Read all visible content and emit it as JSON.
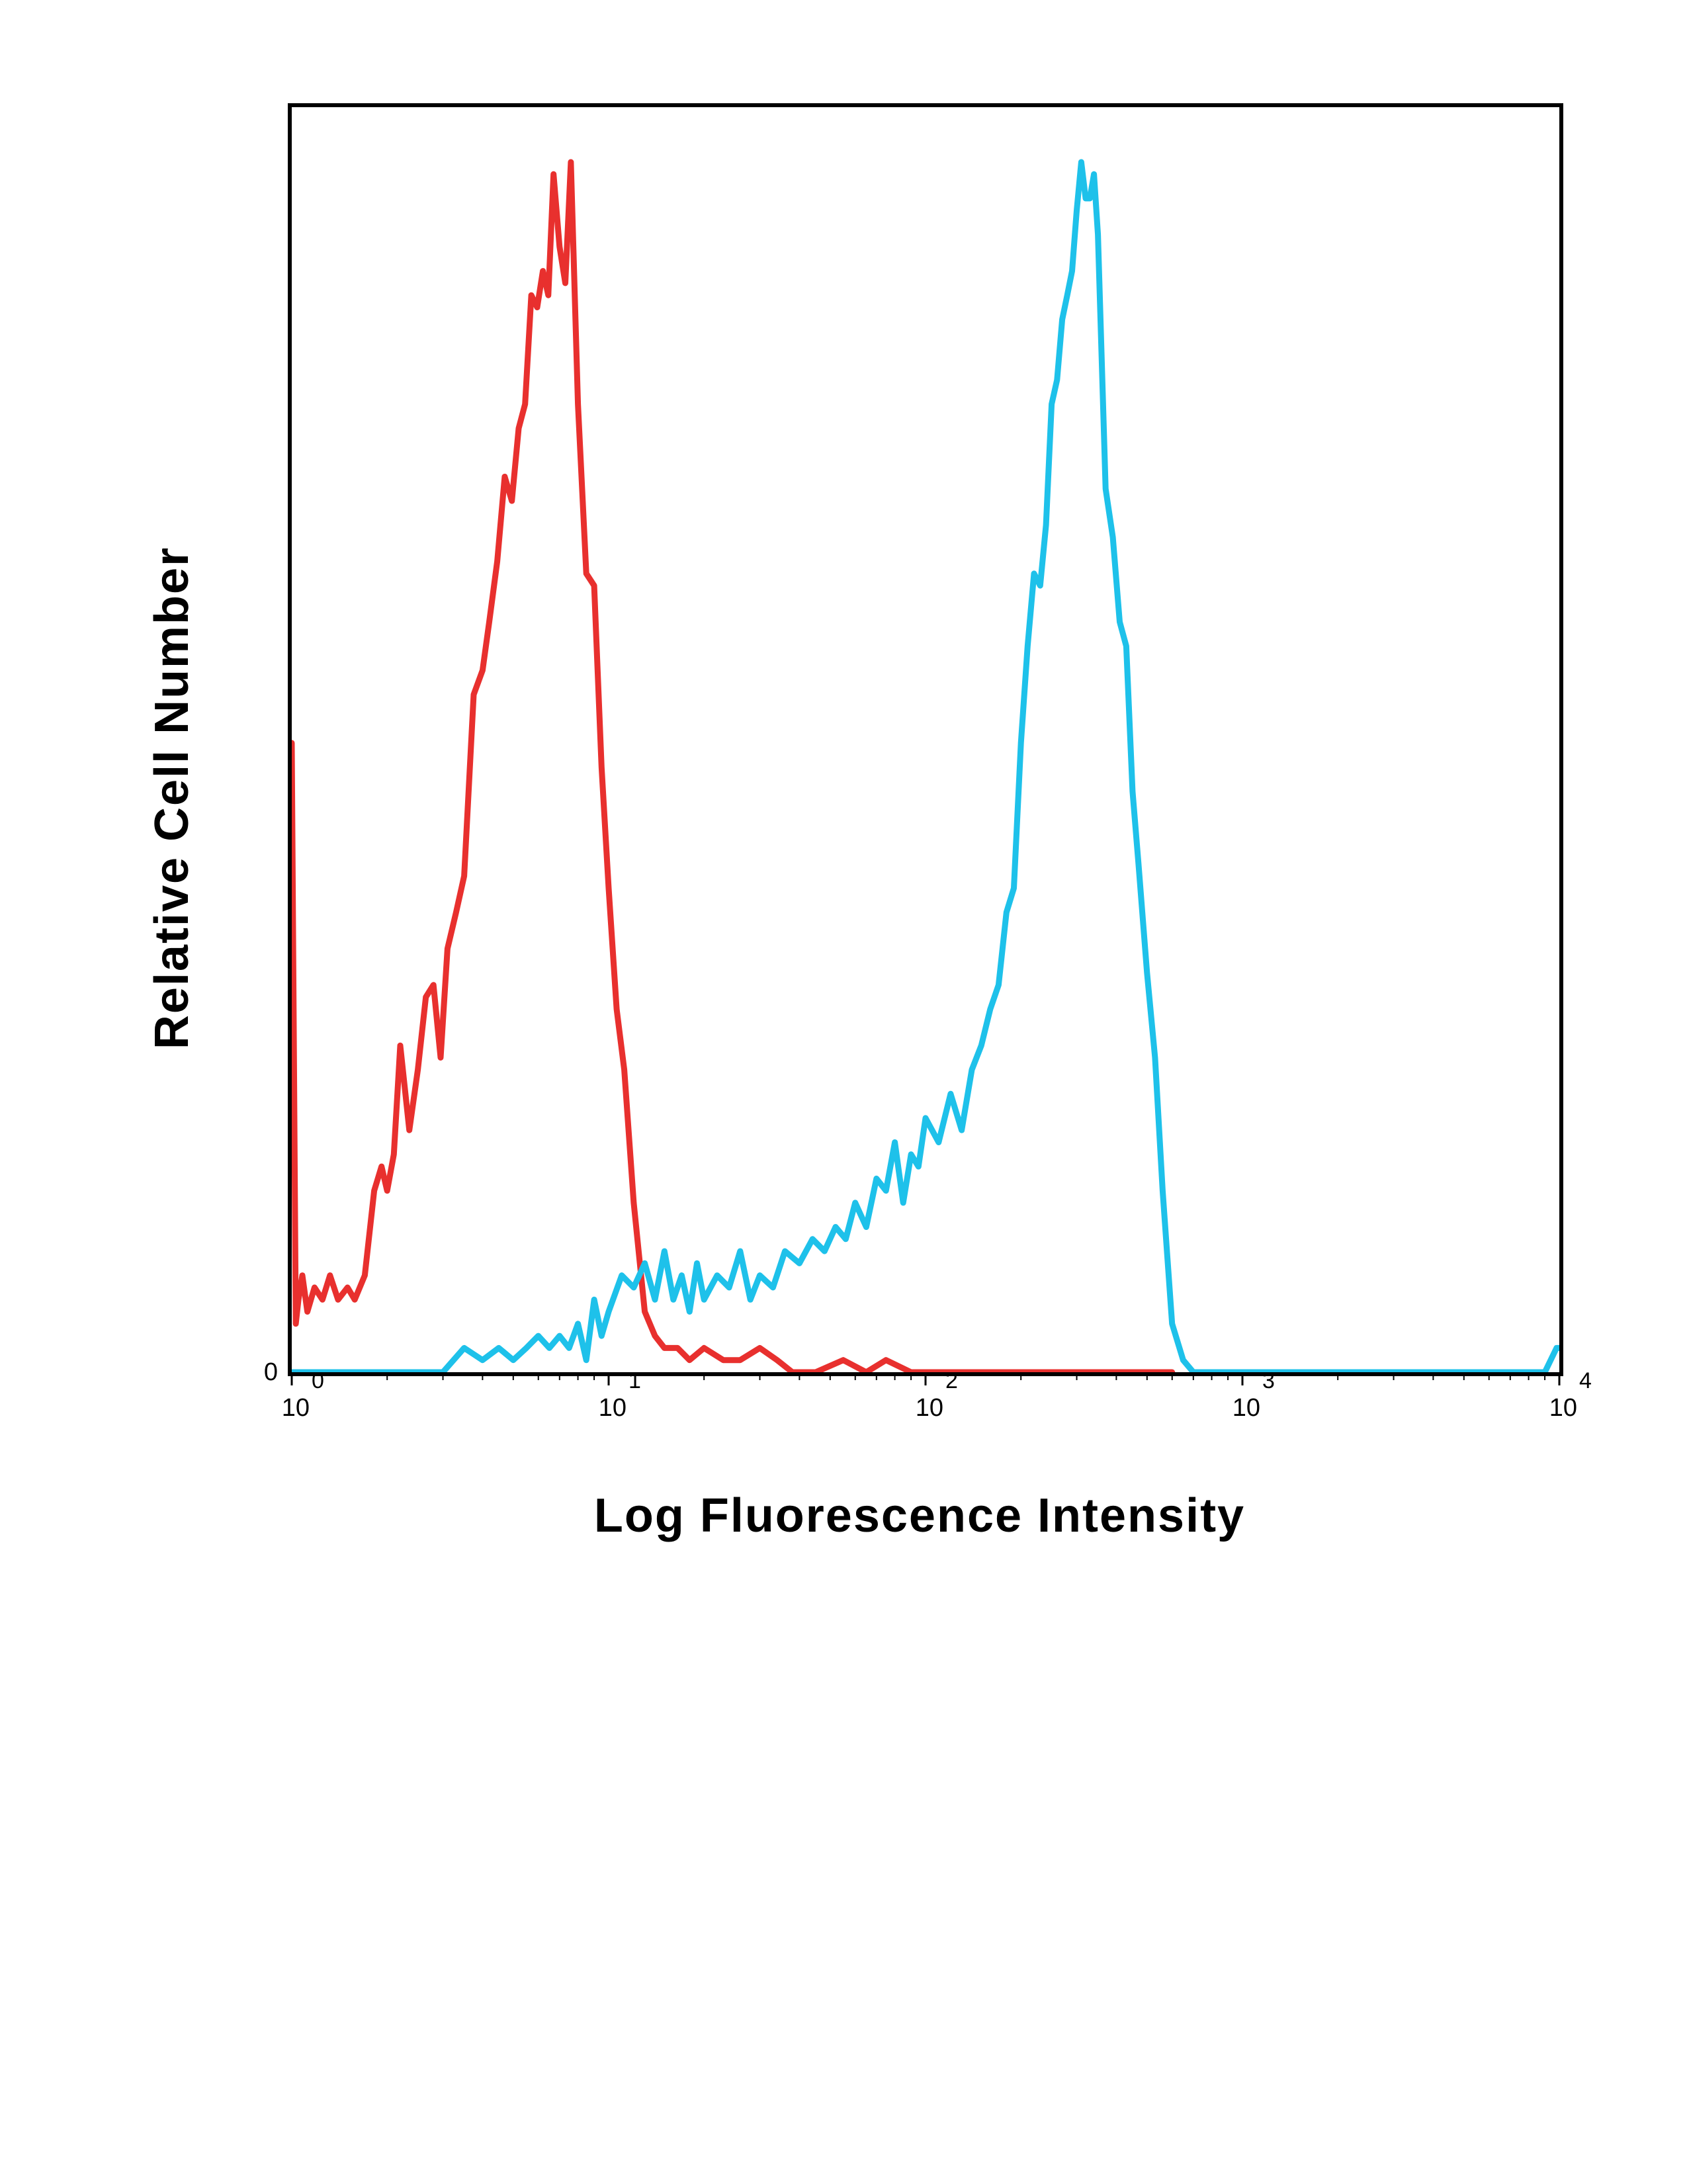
{
  "chart_data": {
    "type": "line",
    "xlabel": "Log Fluorescence Intensity",
    "ylabel": "Relative Cell Number",
    "x_scale": "log",
    "xlim": [
      1,
      10000
    ],
    "ylim": [
      0,
      100
    ],
    "x_ticks": [
      {
        "base": "10",
        "exp": "0",
        "value": 1
      },
      {
        "base": "10",
        "exp": "1",
        "value": 10
      },
      {
        "base": "10",
        "exp": "2",
        "value": 100
      },
      {
        "base": "10",
        "exp": "3",
        "value": 1000
      },
      {
        "base": "10",
        "exp": "4",
        "value": 10000
      }
    ],
    "y_ticks": [
      {
        "label": "0",
        "value": 0
      }
    ],
    "grid": false,
    "series": [
      {
        "color": "#e8302e",
        "x": [
          1.0,
          1.03,
          1.05,
          1.08,
          1.12,
          1.18,
          1.25,
          1.32,
          1.4,
          1.5,
          1.58,
          1.7,
          1.82,
          1.92,
          2.0,
          2.1,
          2.2,
          2.35,
          2.5,
          2.65,
          2.8,
          2.95,
          3.1,
          3.3,
          3.5,
          3.75,
          4.0,
          4.2,
          4.45,
          4.7,
          4.95,
          5.2,
          5.45,
          5.7,
          5.95,
          6.2,
          6.45,
          6.7,
          7.0,
          7.3,
          7.6,
          8.0,
          8.5,
          9.0,
          9.5,
          10.0,
          10.6,
          11.2,
          12.0,
          13.0,
          14.0,
          15.0,
          16.5,
          18.0,
          20.0,
          23.0,
          26.0,
          30.0,
          34.0,
          38.0,
          45.0,
          55.0,
          65.0,
          75.0,
          90.0,
          110.0,
          150.0,
          200.0,
          300.0,
          400.0,
          500.0,
          600.0
        ],
        "y": [
          52,
          4,
          6,
          8,
          5,
          7,
          6,
          8,
          6,
          7,
          6,
          8,
          15,
          17,
          15,
          18,
          27,
          20,
          25,
          31,
          32,
          26,
          35,
          38,
          41,
          56,
          58,
          62,
          67,
          74,
          72,
          78,
          80,
          89,
          88,
          91,
          89,
          99,
          93,
          90,
          100,
          80,
          66,
          65,
          50,
          40,
          30,
          25,
          14,
          5,
          3,
          2,
          2,
          1,
          2,
          1,
          1,
          2,
          1,
          0,
          0,
          1,
          0,
          1,
          0,
          0,
          0,
          0,
          0,
          0,
          0,
          0
        ]
      },
      {
        "color": "#1ec1ea",
        "x": [
          1.0,
          1.5,
          2.0,
          2.5,
          3.0,
          3.5,
          4.0,
          4.5,
          5.0,
          5.5,
          6.0,
          6.5,
          7.0,
          7.5,
          8.0,
          8.5,
          9.0,
          9.5,
          10.0,
          11.0,
          12.0,
          13.0,
          14.0,
          15.0,
          16.0,
          17.0,
          18.0,
          19.0,
          20.0,
          22.0,
          24.0,
          26.0,
          28.0,
          30.0,
          33.0,
          36.0,
          40.0,
          44.0,
          48.0,
          52.0,
          56.0,
          60.0,
          65.0,
          70.0,
          75.0,
          80.0,
          85.0,
          90.0,
          95.0,
          100.0,
          110.0,
          120.0,
          130.0,
          140.0,
          150.0,
          160.0,
          170.0,
          180.0,
          190.0,
          200.0,
          210.0,
          220.0,
          230.0,
          240.0,
          250.0,
          260.0,
          270.0,
          280.0,
          290.0,
          300.0,
          310.0,
          320.0,
          330.0,
          340.0,
          350.0,
          370.0,
          390.0,
          410.0,
          430.0,
          450.0,
          470.0,
          500.0,
          530.0,
          560.0,
          600.0,
          650.0,
          700.0,
          800.0,
          1000.0,
          1500.0,
          2000.0,
          3000.0,
          5000.0,
          9000.0,
          9800.0,
          10000.0
        ],
        "y": [
          0,
          0,
          0,
          0,
          0,
          2,
          1,
          2,
          1,
          2,
          3,
          2,
          3,
          2,
          4,
          1,
          6,
          3,
          5,
          8,
          7,
          9,
          6,
          10,
          6,
          8,
          5,
          9,
          6,
          8,
          7,
          10,
          6,
          8,
          7,
          10,
          9,
          11,
          10,
          12,
          11,
          14,
          12,
          16,
          15,
          19,
          14,
          18,
          17,
          21,
          19,
          23,
          20,
          25,
          27,
          30,
          32,
          38,
          40,
          52,
          60,
          66,
          65,
          70,
          80,
          82,
          87,
          89,
          91,
          96,
          100,
          97,
          97,
          99,
          94,
          73,
          69,
          62,
          60,
          48,
          42,
          33,
          26,
          15,
          4,
          1,
          0,
          0,
          0,
          0,
          0,
          0,
          0,
          0,
          2,
          2
        ]
      }
    ]
  }
}
